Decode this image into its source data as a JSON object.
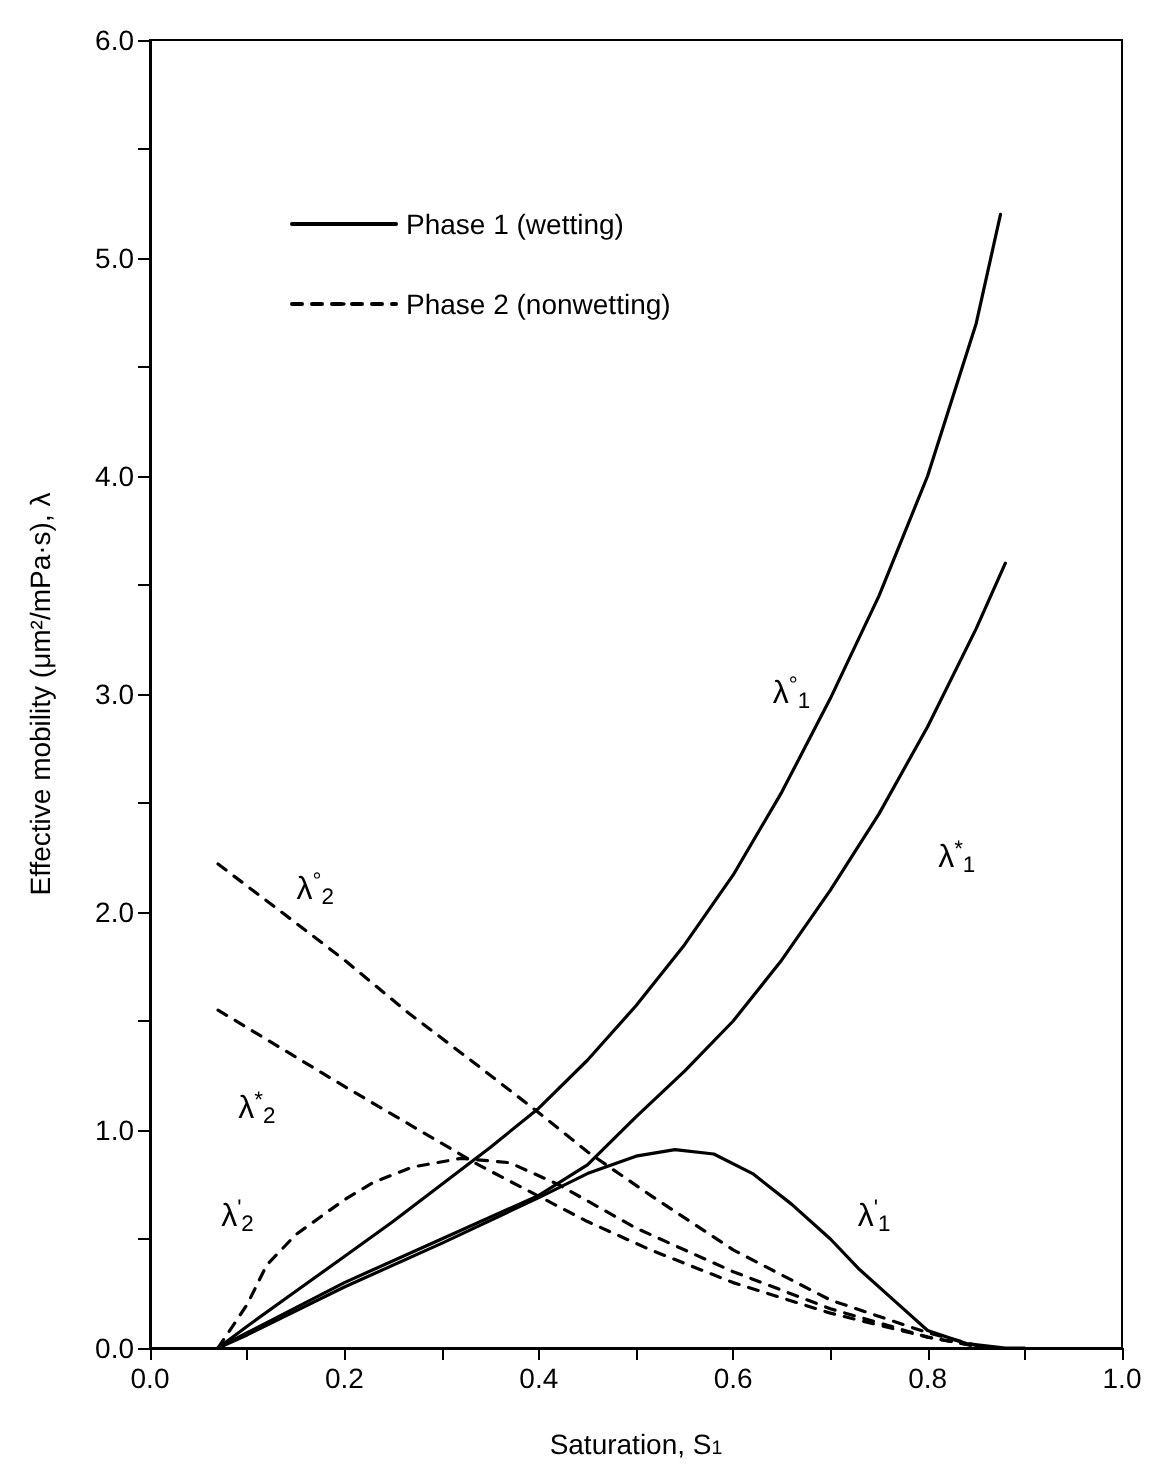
{
  "chart_data": {
    "type": "line",
    "xlabel": "Saturation, S$_{1}$",
    "ylabel": "Effective mobility (μm²/mPa·s), λ",
    "xlim": [
      0,
      1
    ],
    "ylim": [
      0,
      6
    ],
    "xticks": [
      {
        "value": 0,
        "label": "0.0"
      },
      {
        "value": 0.1,
        "label": null
      },
      {
        "value": 0.2,
        "label": "0.2"
      },
      {
        "value": 0.3,
        "label": null
      },
      {
        "value": 0.4,
        "label": "0.4"
      },
      {
        "value": 0.5,
        "label": null
      },
      {
        "value": 0.6,
        "label": "0.6"
      },
      {
        "value": 0.7,
        "label": null
      },
      {
        "value": 0.8,
        "label": "0.8"
      },
      {
        "value": 0.9,
        "label": null
      },
      {
        "value": 1,
        "label": "1.0"
      }
    ],
    "yticks": [
      {
        "value": 0,
        "label": "0.0"
      },
      {
        "value": 0.5,
        "label": null
      },
      {
        "value": 1,
        "label": "1.0"
      },
      {
        "value": 1.5,
        "label": null
      },
      {
        "value": 2,
        "label": "2.0"
      },
      {
        "value": 2.5,
        "label": null
      },
      {
        "value": 3,
        "label": "3.0"
      },
      {
        "value": 3.5,
        "label": null
      },
      {
        "value": 4,
        "label": "4.0"
      },
      {
        "value": 4.5,
        "label": null
      },
      {
        "value": 5,
        "label": "5.0"
      },
      {
        "value": 5.5,
        "label": null
      },
      {
        "value": 6,
        "label": "6.0"
      }
    ],
    "grid": false,
    "legend": "top left",
    "marker": "none",
    "series": [
      {
        "name": "Phase 1 (wetting)",
        "color": "#000000",
        "line_style": "solid",
        "x": [
          0.07,
          0.1,
          0.15,
          0.2,
          0.25,
          0.3,
          0.35,
          0.4,
          0.45,
          0.5,
          0.55,
          0.6,
          0.65,
          0.7,
          0.75,
          0.8,
          0.85,
          0.875
        ],
        "values": [
          0,
          0.1,
          0.26,
          0.42,
          0.58,
          0.75,
          0.92,
          1.1,
          1.32,
          1.57,
          1.85,
          2.17,
          2.55,
          2.98,
          3.45,
          4.0,
          4.7,
          5.2
        ]
      },
      {
        "color": "#000000",
        "line_style": "solid",
        "x": [
          0.07,
          0.1,
          0.2,
          0.3,
          0.4,
          0.45,
          0.5,
          0.55,
          0.6,
          0.65,
          0.7,
          0.75,
          0.8,
          0.85,
          0.88
        ],
        "values": [
          0,
          0.07,
          0.3,
          0.5,
          0.7,
          0.84,
          1.06,
          1.27,
          1.5,
          1.78,
          2.1,
          2.45,
          2.85,
          3.3,
          3.6
        ]
      },
      {
        "color": "#000000",
        "line_style": "solid",
        "x": [
          0.07,
          0.1,
          0.2,
          0.3,
          0.4,
          0.45,
          0.5,
          0.54,
          0.58,
          0.62,
          0.66,
          0.7,
          0.73,
          0.77,
          0.8,
          0.84,
          0.88,
          0.9
        ],
        "values": [
          0,
          0.06,
          0.28,
          0.48,
          0.69,
          0.8,
          0.88,
          0.91,
          0.89,
          0.8,
          0.66,
          0.5,
          0.36,
          0.2,
          0.08,
          0.02,
          0,
          0
        ]
      },
      {
        "name": "Phase 2 (nonwetting)",
        "color": "#000000",
        "line_style": "dashed",
        "x": [
          0.07,
          0.15,
          0.2,
          0.265,
          0.33,
          0.394,
          0.45,
          0.515,
          0.6,
          0.7,
          0.8,
          0.86
        ],
        "values": [
          2.22,
          1.95,
          1.78,
          1.54,
          1.32,
          1.1,
          0.9,
          0.7,
          0.45,
          0.22,
          0.07,
          0
        ]
      },
      {
        "color": "#000000",
        "line_style": "dashed",
        "x": [
          0.07,
          0.2,
          0.338,
          0.45,
          0.515,
          0.6,
          0.7,
          0.8,
          0.86
        ],
        "values": [
          1.55,
          1.2,
          0.84,
          0.58,
          0.45,
          0.3,
          0.16,
          0.05,
          0
        ]
      },
      {
        "color": "#000000",
        "line_style": "dashed",
        "x": [
          0.07,
          0.1,
          0.12,
          0.15,
          0.2,
          0.23,
          0.27,
          0.32,
          0.37,
          0.42,
          0.5,
          0.6,
          0.7,
          0.8,
          0.86
        ],
        "values": [
          0,
          0.2,
          0.38,
          0.52,
          0.68,
          0.76,
          0.83,
          0.87,
          0.85,
          0.75,
          0.55,
          0.35,
          0.18,
          0.05,
          0
        ]
      }
    ],
    "annotations": [
      "λ$^{°}$$_{1}$",
      "λ$^{*}$$_{1}$",
      "λ$^{'}$$_{1}$",
      "λ$^{°}$$_{2}$",
      "λ$^{*}$$_{2}$",
      "λ$^{'}$$_{2}$"
    ]
  }
}
